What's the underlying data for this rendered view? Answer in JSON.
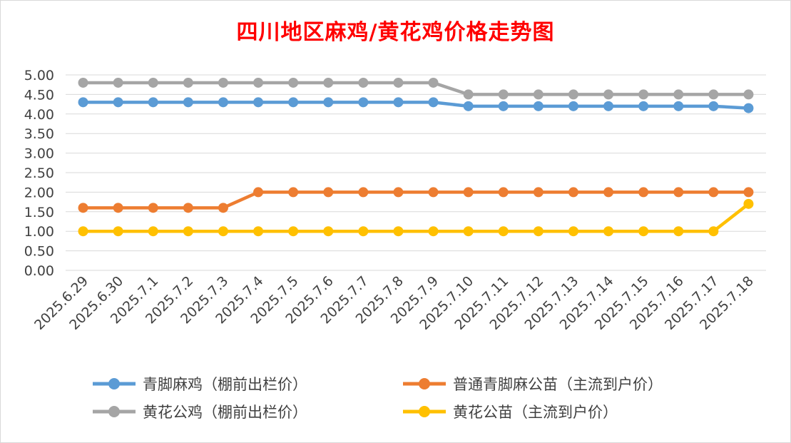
{
  "chart_data": {
    "type": "line",
    "title": "四川地区麻鸡/黄花鸡价格走势图",
    "title_color": "#ff0000",
    "categories": [
      "2025.6.29",
      "2025.6.30",
      "2025.7.1",
      "2025.7.2",
      "2025.7.3",
      "2025.7.4",
      "2025.7.5",
      "2025.7.6",
      "2025.7.7",
      "2025.7.8",
      "2025.7.9",
      "2025.7.10",
      "2025.7.11",
      "2025.7.12",
      "2025.7.13",
      "2025.7.14",
      "2025.7.15",
      "2025.7.16",
      "2025.7.17",
      "2025.7.18"
    ],
    "ylim": [
      0,
      5
    ],
    "yticks": [
      "0.00",
      "0.50",
      "1.00",
      "1.50",
      "2.00",
      "2.50",
      "3.00",
      "3.50",
      "4.00",
      "4.50",
      "5.00"
    ],
    "grid": true,
    "legend_position": "bottom",
    "series": [
      {
        "name": "青脚麻鸡（棚前出栏价）",
        "color": "#5b9bd5",
        "values": [
          4.3,
          4.3,
          4.3,
          4.3,
          4.3,
          4.3,
          4.3,
          4.3,
          4.3,
          4.3,
          4.3,
          4.2,
          4.2,
          4.2,
          4.2,
          4.2,
          4.2,
          4.2,
          4.2,
          4.15
        ]
      },
      {
        "name": "黄花公鸡（棚前出栏价）",
        "color": "#a5a5a5",
        "values": [
          4.8,
          4.8,
          4.8,
          4.8,
          4.8,
          4.8,
          4.8,
          4.8,
          4.8,
          4.8,
          4.8,
          4.5,
          4.5,
          4.5,
          4.5,
          4.5,
          4.5,
          4.5,
          4.5,
          4.5
        ]
      },
      {
        "name": "普通青脚麻公苗（主流到户价）",
        "color": "#ed7d31",
        "values": [
          1.6,
          1.6,
          1.6,
          1.6,
          1.6,
          2.0,
          2.0,
          2.0,
          2.0,
          2.0,
          2.0,
          2.0,
          2.0,
          2.0,
          2.0,
          2.0,
          2.0,
          2.0,
          2.0,
          2.0
        ]
      },
      {
        "name": "黄花公苗（主流到户价）",
        "color": "#ffc000",
        "values": [
          1.0,
          1.0,
          1.0,
          1.0,
          1.0,
          1.0,
          1.0,
          1.0,
          1.0,
          1.0,
          1.0,
          1.0,
          1.0,
          1.0,
          1.0,
          1.0,
          1.0,
          1.0,
          1.0,
          1.7
        ]
      }
    ]
  }
}
